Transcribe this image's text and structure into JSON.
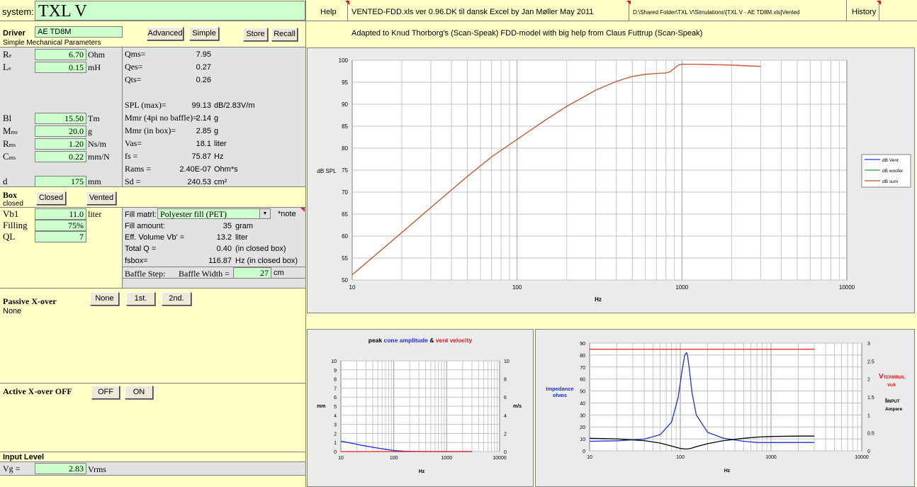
{
  "header": {
    "system_label": "system:",
    "system_name": "TXL V",
    "help": "Help",
    "file_info": "VENTED-FDD.xls  ver 0.96.DK  til dansk Excel    by  Jan Møller  May 2011",
    "path": "D:\\Shared Folder\\TXL V\\Simulations\\[TXL V - AE TD8M.xls]Vented",
    "history": "History",
    "adapted": "Adapted to Knud Thorborg's (Scan-Speak) FDD-model with big help from Claus Futtrup (Scan-Speak)"
  },
  "driver": {
    "label": "Driver",
    "name": "AE TD8M",
    "subtitle": "Simple Mechanical Parameters",
    "btn_advanced": "Advanced",
    "btn_simple": "Simple",
    "btn_store": "Store",
    "btn_recall": "Recall"
  },
  "params_left": [
    {
      "sym": "R",
      "sub": "e",
      "value": "6.70",
      "unit": "Ohm"
    },
    {
      "sym": "L",
      "sub": "e",
      "value": "0.15",
      "unit": "mH"
    },
    {
      "sym": "Bl",
      "sub": "",
      "value": "15.50",
      "unit": "Tm"
    },
    {
      "sym": "M",
      "sub": "ms",
      "value": "20.0",
      "unit": "g"
    },
    {
      "sym": "R",
      "sub": "ms",
      "value": "1.20",
      "unit": "Ns/m"
    },
    {
      "sym": "C",
      "sub": "ms",
      "value": "0.22",
      "unit": "mm/N"
    },
    {
      "sym": "d",
      "sub": "",
      "value": "175",
      "unit": "mm"
    }
  ],
  "params_right": [
    {
      "label": "Qms=",
      "value": "7.95",
      "unit": ""
    },
    {
      "label": "Qes=",
      "value": "0.27",
      "unit": ""
    },
    {
      "label": "Qts=",
      "value": "0.26",
      "unit": ""
    },
    {
      "label": "SPL (max)=",
      "value": "99.13",
      "unit": "dB/2.83V/m"
    },
    {
      "label": "Mmr (4pi no baffle)=",
      "value": "2.14",
      "unit": "g"
    },
    {
      "label": "Mmr (in box)=",
      "value": "2.85",
      "unit": "g"
    },
    {
      "label": "Vas=",
      "value": "18.1",
      "unit": "liter"
    },
    {
      "label": "fs =",
      "value": "75.87",
      "unit": "Hz"
    },
    {
      "label": "Rams =",
      "value": "2.40E-07",
      "unit": "Ohm*s"
    },
    {
      "label": "Sd =",
      "value": "240.53",
      "unit": "cm²"
    }
  ],
  "box": {
    "label": "Box",
    "state": "closed",
    "btn_closed": "Closed",
    "btn_vented": "Vented",
    "rows": [
      {
        "label": "Vb1",
        "value": "11.0",
        "unit": "liter"
      },
      {
        "label": "Filling",
        "value": "75%",
        "unit": ""
      },
      {
        "label": "QL",
        "value": "7",
        "unit": ""
      }
    ],
    "fill_label": "Fill matrl:",
    "fill_value": "Polyester fill (PET)",
    "note": "*note",
    "info": [
      {
        "label": "Fill amount:",
        "value": "35",
        "unit": "gram"
      },
      {
        "label": "Eff. Volume Vb' =",
        "value": "13.2",
        "unit": "liter"
      },
      {
        "label": "Total Q =",
        "value": "0.40",
        "unit": "(in closed box)"
      },
      {
        "label": "fsbox=",
        "value": "116.87",
        "unit": "Hz  (in closed box)"
      }
    ],
    "baffle_step": "Baffle Step:",
    "baffle_width": "Baffle Width  =",
    "baffle_value": "27",
    "baffle_unit": "cm"
  },
  "passive": {
    "label": "Passive X-over",
    "state": "None",
    "btn_none": "None",
    "btn_1st": "1st.",
    "btn_2nd": "2nd."
  },
  "active": {
    "label": "Active X-over OFF",
    "btn_off": "OFF",
    "btn_on": "ON"
  },
  "input": {
    "label": "Input Level",
    "sym": "Vg =",
    "value": "2.83",
    "unit": "Vrms"
  },
  "colors": {
    "green_cell": "#ccffcc",
    "yellow_bg": "#ffffc8",
    "spl_line": "#c0502b",
    "blue": "#1f2fd6",
    "red": "#e02020"
  },
  "chart_data": [
    {
      "type": "line",
      "title": "",
      "ylabel": "dB SPL",
      "xlabel": "Hz",
      "xscale": "log",
      "xlim": [
        10,
        10000
      ],
      "ylim": [
        50,
        100
      ],
      "yticks": [
        50,
        55,
        60,
        65,
        70,
        75,
        80,
        85,
        90,
        95,
        100
      ],
      "xticks": [
        10,
        100,
        1000,
        10000
      ],
      "legend": "right",
      "series": [
        {
          "name": "dB Vent",
          "color": "#1f2fd6",
          "x": [],
          "y": []
        },
        {
          "name": "dB woofer",
          "color": "#2ea02e",
          "x": [],
          "y": []
        },
        {
          "name": "dB sum",
          "color": "#c0502b",
          "x": [
            10,
            15,
            20,
            30,
            40,
            50,
            70,
            100,
            150,
            200,
            300,
            400,
            500,
            600,
            700,
            800,
            850,
            900,
            950,
            1000,
            1200,
            1500,
            2000,
            3000
          ],
          "y": [
            51.2,
            56.8,
            60.8,
            66.5,
            70.5,
            73.6,
            78.0,
            82.0,
            86.5,
            89.5,
            93.2,
            95.2,
            96.3,
            96.8,
            97.0,
            97.1,
            97.4,
            98.2,
            98.9,
            99.1,
            99.1,
            99.0,
            98.9,
            98.6
          ]
        }
      ]
    },
    {
      "type": "line",
      "title_parts": [
        "peak ",
        "cone amplitude",
        " & ",
        "vent velocity"
      ],
      "ylabel": "mm",
      "y2label": "m/s",
      "xlabel": "Hz",
      "xscale": "log",
      "xlim": [
        10,
        10000
      ],
      "ylim": [
        0,
        10
      ],
      "y2lim": [
        0,
        10
      ],
      "yticks": [
        0,
        1,
        2,
        3,
        4,
        5,
        6,
        7,
        8,
        9,
        10
      ],
      "y2ticks": [
        0,
        2,
        4,
        6,
        8,
        10
      ],
      "series": [
        {
          "name": "cone amplitude",
          "color": "#1f2fd6",
          "x": [
            10,
            15,
            20,
            30,
            50,
            70,
            100,
            150,
            200,
            300,
            500,
            700,
            1000,
            3000
          ],
          "y": [
            1.15,
            0.95,
            0.8,
            0.6,
            0.38,
            0.25,
            0.12,
            0.05,
            0.03,
            0.01,
            0.0,
            0.0,
            0.0,
            0.0
          ]
        },
        {
          "name": "vent velocity",
          "color": "#e02020",
          "x": [
            10,
            3000
          ],
          "y": [
            0.0,
            0.0
          ]
        }
      ]
    },
    {
      "type": "line",
      "ylabel": "Impedance ohms",
      "y2label_main": "V",
      "y2label_sub": "TERMINAL",
      "y2label_unit": "Volt",
      "y3label_main": "I",
      "y3label_sub": "INPUT",
      "y3label_unit": "Ampere",
      "xlabel": "Hz",
      "xscale": "log",
      "xlim": [
        10,
        10000
      ],
      "ylim": [
        0,
        90
      ],
      "y2lim": [
        0,
        3
      ],
      "yticks": [
        0,
        10,
        20,
        30,
        40,
        50,
        60,
        70,
        80,
        90
      ],
      "y2ticks": [
        "0",
        "0.5",
        "1",
        "1.5",
        "2",
        "2.5",
        "3"
      ],
      "series": [
        {
          "name": "impedance",
          "color": "#1f2fd6",
          "x": [
            10,
            20,
            40,
            60,
            80,
            95,
            105,
            112,
            117,
            120,
            125,
            135,
            150,
            200,
            300,
            500,
            700,
            1000,
            2000,
            3000
          ],
          "y": [
            8.0,
            8.4,
            9.8,
            13.5,
            24.0,
            45.0,
            68.0,
            80.0,
            82.0,
            80.0,
            70.0,
            48.0,
            30.0,
            15.5,
            10.5,
            8.0,
            7.0,
            6.9,
            7.0,
            7.0
          ]
        },
        {
          "name": "terminal voltage",
          "color": "#e02020",
          "x": [
            10,
            3000
          ],
          "y": [
            84.9,
            84.9
          ]
        },
        {
          "name": "input current",
          "color": "#000000",
          "x": [
            10,
            20,
            40,
            60,
            80,
            100,
            117,
            130,
            150,
            200,
            300,
            500,
            700,
            1000,
            2000,
            3000
          ],
          "y": [
            10.5,
            10.0,
            8.5,
            6.5,
            4.0,
            2.0,
            1.5,
            2.0,
            3.5,
            6.0,
            8.5,
            10.5,
            11.5,
            12.0,
            12.3,
            12.3
          ]
        }
      ]
    }
  ]
}
